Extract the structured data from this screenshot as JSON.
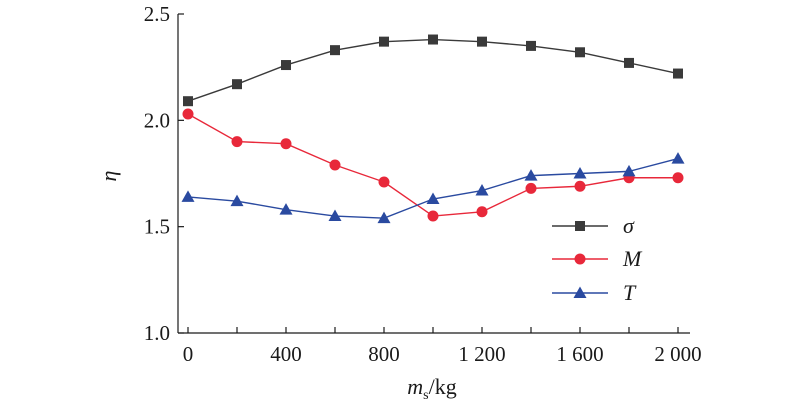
{
  "chart_data": {
    "type": "line",
    "xlabel_main": "m",
    "xlabel_sub": "s",
    "xlabel_unit": "/kg",
    "ylabel": "η",
    "xlim": [
      0,
      2000
    ],
    "ylim": [
      1.0,
      2.5
    ],
    "x_ticks": [
      0,
      400,
      800,
      1200,
      1600,
      2000
    ],
    "x_tick_labels": [
      "0",
      "400",
      "800",
      "1 200",
      "1 600",
      "2 000"
    ],
    "y_ticks": [
      1.0,
      1.5,
      2.0,
      2.5
    ],
    "y_tick_labels": [
      "1.0",
      "1.5",
      "2.0",
      "2.5"
    ],
    "legend_position": "right",
    "grid": false,
    "x": [
      0,
      200,
      400,
      600,
      800,
      1000,
      1200,
      1400,
      1600,
      1800,
      2000
    ],
    "series": [
      {
        "name": "σ",
        "marker": "square",
        "color": "#3a3a3a",
        "values": [
          2.09,
          2.17,
          2.26,
          2.33,
          2.37,
          2.38,
          2.37,
          2.35,
          2.32,
          2.27,
          2.22
        ]
      },
      {
        "name": "M",
        "marker": "circle",
        "color": "#e8283a",
        "values": [
          2.03,
          1.9,
          1.89,
          1.79,
          1.71,
          1.55,
          1.57,
          1.68,
          1.69,
          1.73,
          1.73
        ]
      },
      {
        "name": "T",
        "marker": "triangle",
        "color": "#2a4aa0",
        "values": [
          1.64,
          1.62,
          1.58,
          1.55,
          1.54,
          1.63,
          1.67,
          1.74,
          1.75,
          1.76,
          1.82
        ]
      }
    ]
  }
}
